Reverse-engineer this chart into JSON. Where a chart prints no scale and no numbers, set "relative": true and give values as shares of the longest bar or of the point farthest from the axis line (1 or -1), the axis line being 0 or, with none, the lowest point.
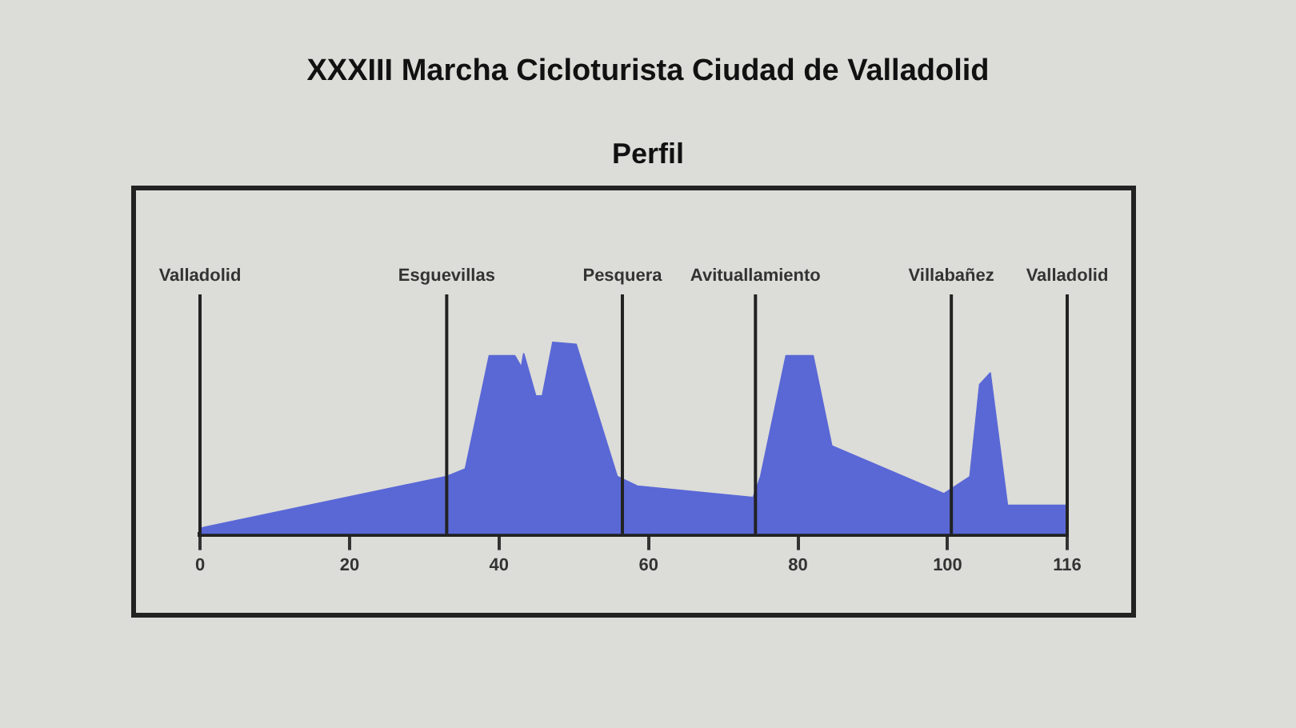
{
  "chart_data": {
    "type": "area",
    "title": "XXXIII Marcha Cicloturista Ciudad de Valladolid",
    "subtitle": "Perfil",
    "relative": true,
    "grid": false,
    "legend": false,
    "marker": "none",
    "xlim": [
      0,
      116
    ],
    "xticks": [
      0,
      20,
      40,
      60,
      80,
      100,
      116
    ],
    "x": [
      0,
      33,
      35.5,
      38.7,
      42.1,
      43,
      43.3,
      44.9,
      45.8,
      47.2,
      50.3,
      55.8,
      58.5,
      74,
      75,
      78.4,
      82,
      84.5,
      99.5,
      103,
      104.3,
      105.7,
      108,
      116
    ],
    "series": [
      {
        "color": "#5a68d6",
        "values": [
          0.03,
          0.3,
          0.34,
          0.93,
          0.93,
          0.87,
          0.94,
          0.72,
          0.72,
          1,
          0.99,
          0.3,
          0.25,
          0.19,
          0.3,
          0.93,
          0.93,
          0.46,
          0.21,
          0.3,
          0.78,
          0.84,
          0.15,
          0.15
        ]
      }
    ],
    "ref_lines": [
      {
        "axis": "x",
        "value": 0,
        "label": "Valladolid"
      },
      {
        "axis": "x",
        "value": 33,
        "label": "Esguevillas"
      },
      {
        "axis": "x",
        "value": 56.5,
        "label": "Pesquera"
      },
      {
        "axis": "x",
        "value": 74.3,
        "label": "Avituallamiento"
      },
      {
        "axis": "x",
        "value": 100.5,
        "label": "Villabañez"
      },
      {
        "axis": "x",
        "value": 116,
        "label": "Valladolid"
      }
    ]
  }
}
